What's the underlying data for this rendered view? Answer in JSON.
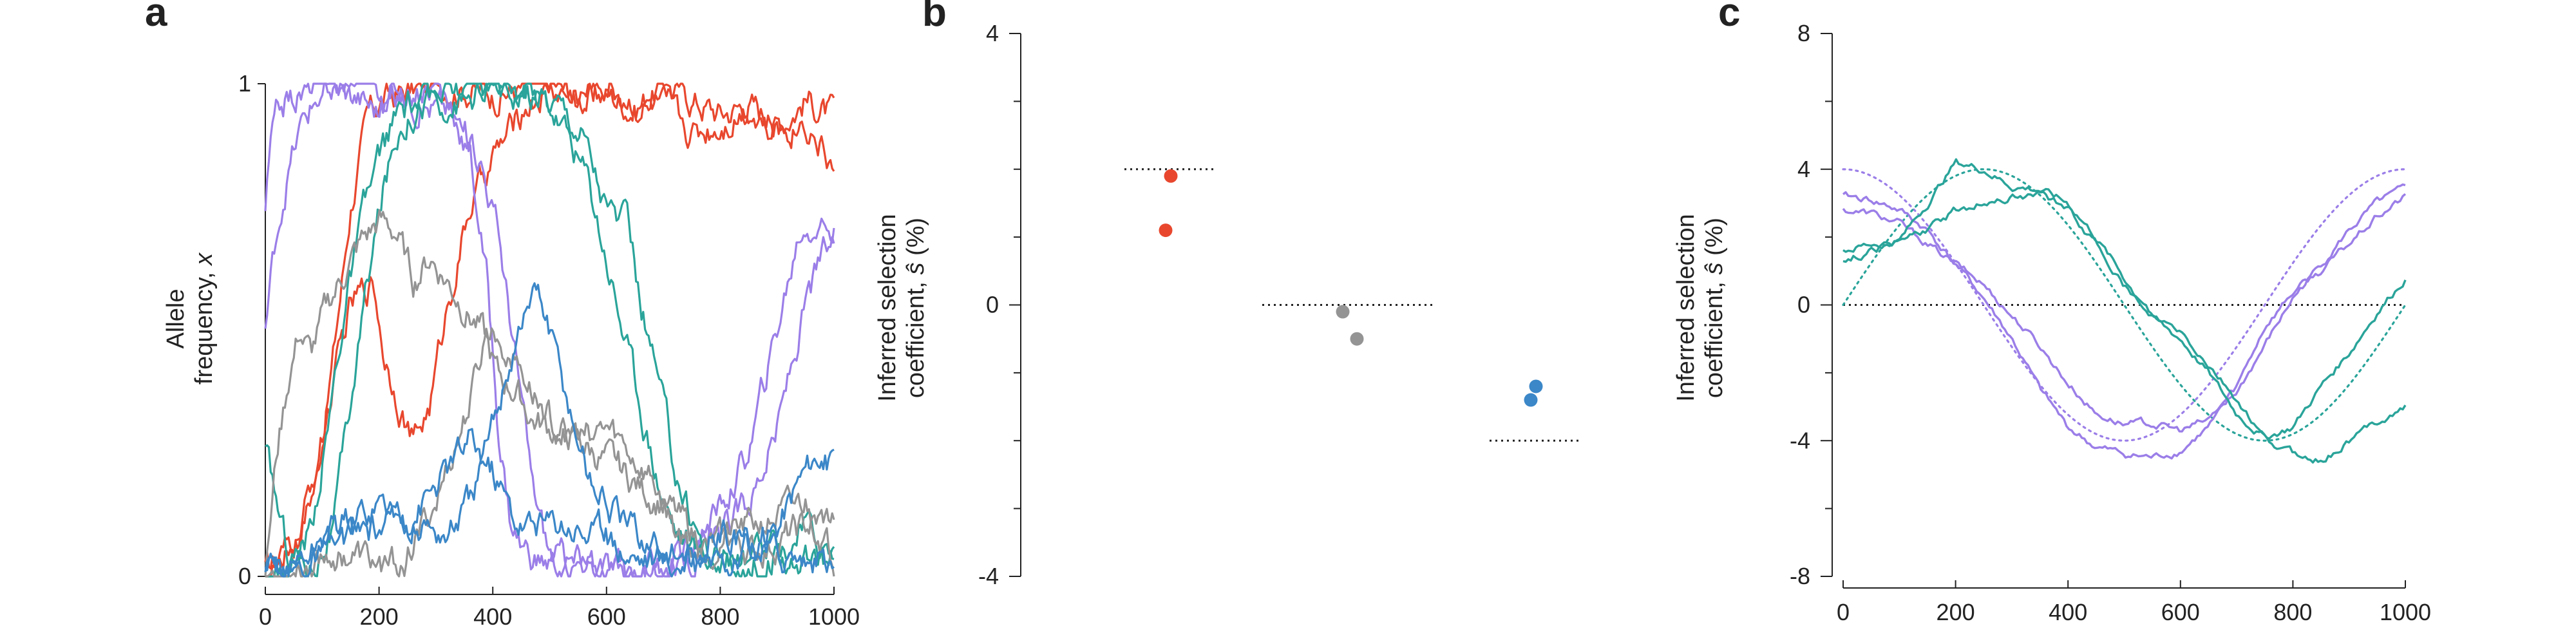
{
  "chart_data": [
    {
      "panel": "a",
      "type": "line",
      "ylabel_lines": [
        "Allele",
        "frequency, "
      ],
      "ylabel_var": "x",
      "xlim": [
        0,
        1000
      ],
      "ylim": [
        0,
        1
      ],
      "xticks": [
        0,
        200,
        400,
        600,
        800,
        1000
      ],
      "xtick_labels": [
        "0",
        "200",
        "400",
        "600",
        "800",
        "1000"
      ],
      "yticks": [
        0,
        1
      ],
      "ytick_labels": [
        "0",
        "1"
      ],
      "series": [
        {
          "color": "#e8472e",
          "x": [
            0,
            30,
            60,
            90,
            120,
            150,
            180,
            210,
            240,
            280,
            320,
            360,
            400,
            450,
            500,
            550,
            600,
            650,
            700,
            750,
            800,
            850,
            900,
            950,
            1000
          ],
          "y": [
            0.01,
            0.04,
            0.1,
            0.2,
            0.45,
            0.75,
            0.93,
            0.97,
            0.98,
            0.99,
            1.0,
            0.99,
            0.98,
            0.99,
            1.0,
            0.97,
            0.98,
            0.95,
            1.0,
            0.97,
            0.94,
            0.96,
            0.92,
            0.97,
            0.93
          ]
        },
        {
          "color": "#e8472e",
          "x": [
            0,
            30,
            60,
            100,
            150,
            190,
            210,
            230,
            260,
            290,
            320,
            360,
            400,
            430,
            460,
            500,
            550,
            600,
            650,
            700,
            750,
            800,
            850,
            900,
            950,
            1000
          ],
          "y": [
            0.0,
            0.03,
            0.08,
            0.28,
            0.55,
            0.6,
            0.45,
            0.38,
            0.27,
            0.35,
            0.55,
            0.75,
            0.85,
            0.9,
            0.96,
            0.99,
            0.97,
            1.0,
            0.96,
            0.95,
            0.9,
            0.92,
            0.96,
            0.9,
            0.93,
            0.83
          ]
        },
        {
          "color": "#9b7ee8",
          "x": [
            0,
            10,
            25,
            40,
            60,
            80,
            100,
            130,
            160,
            200,
            240,
            280,
            320,
            350,
            380,
            410,
            440,
            470,
            500,
            550,
            600,
            650,
            700,
            750,
            800,
            850,
            900,
            950,
            980,
            1000
          ],
          "y": [
            0.75,
            0.88,
            0.95,
            0.97,
            0.98,
            0.99,
            1.0,
            0.99,
            0.98,
            0.95,
            0.98,
            0.96,
            0.95,
            0.9,
            0.85,
            0.7,
            0.45,
            0.18,
            0.05,
            0.02,
            0.01,
            0.01,
            0.02,
            0.04,
            0.08,
            0.15,
            0.3,
            0.55,
            0.65,
            0.68
          ]
        },
        {
          "color": "#9b7ee8",
          "x": [
            0,
            20,
            40,
            60,
            80,
            100,
            140,
            180,
            220,
            260,
            300,
            330,
            360,
            390,
            410,
            430,
            450,
            480,
            520,
            560,
            600,
            650,
            700,
            750,
            790,
            820,
            850,
            880,
            910,
            940,
            970,
            1000
          ],
          "y": [
            0.5,
            0.7,
            0.82,
            0.9,
            0.95,
            0.98,
            0.99,
            1.0,
            0.98,
            0.99,
            1.0,
            0.95,
            0.85,
            0.6,
            0.3,
            0.12,
            0.06,
            0.03,
            0.02,
            0.02,
            0.01,
            0.01,
            0.02,
            0.05,
            0.12,
            0.18,
            0.25,
            0.4,
            0.55,
            0.7,
            0.72,
            0.7
          ]
        },
        {
          "color": "#2aa49a",
          "x": [
            0,
            40,
            80,
            120,
            150,
            180,
            210,
            240,
            280,
            320,
            360,
            400,
            440,
            480,
            520,
            560,
            600,
            640,
            660,
            690,
            720,
            750,
            780,
            820,
            860,
            900,
            950,
            1000
          ],
          "y": [
            0.25,
            0.05,
            0.02,
            0.1,
            0.35,
            0.6,
            0.8,
            0.93,
            0.97,
            0.98,
            0.99,
            1.0,
            0.99,
            0.98,
            0.96,
            0.9,
            0.75,
            0.7,
            0.55,
            0.4,
            0.22,
            0.12,
            0.05,
            0.03,
            0.04,
            0.05,
            0.03,
            0.03
          ]
        },
        {
          "color": "#2aa49a",
          "x": [
            0,
            40,
            80,
            110,
            140,
            170,
            200,
            230,
            260,
            300,
            340,
            380,
            420,
            460,
            500,
            540,
            570,
            600,
            630,
            660,
            690,
            720,
            760,
            800,
            850,
            900,
            950,
            1000
          ],
          "y": [
            0.0,
            0.01,
            0.1,
            0.3,
            0.55,
            0.72,
            0.85,
            0.93,
            0.96,
            0.97,
            0.96,
            0.98,
            0.99,
            0.98,
            0.96,
            0.88,
            0.8,
            0.65,
            0.5,
            0.35,
            0.2,
            0.1,
            0.05,
            0.03,
            0.02,
            0.05,
            0.1,
            0.04
          ]
        },
        {
          "color": "#949494",
          "x": [
            0,
            20,
            40,
            60,
            80,
            110,
            140,
            170,
            200,
            230,
            260,
            290,
            320,
            350,
            380,
            410,
            440,
            470,
            500,
            540,
            580,
            620,
            660,
            700,
            740,
            780,
            820,
            860,
            900,
            950,
            1000
          ],
          "y": [
            0.0,
            0.25,
            0.4,
            0.5,
            0.45,
            0.55,
            0.62,
            0.68,
            0.72,
            0.7,
            0.6,
            0.65,
            0.6,
            0.55,
            0.5,
            0.4,
            0.38,
            0.32,
            0.3,
            0.28,
            0.25,
            0.22,
            0.18,
            0.15,
            0.1,
            0.06,
            0.08,
            0.05,
            0.07,
            0.1,
            0.12
          ]
        },
        {
          "color": "#949494",
          "x": [
            0,
            40,
            80,
            120,
            160,
            200,
            240,
            270,
            300,
            330,
            360,
            390,
            420,
            450,
            480,
            520,
            560,
            600,
            640,
            680,
            720,
            760,
            800,
            850,
            900,
            950,
            1000
          ],
          "y": [
            0.0,
            0.01,
            0.03,
            0.05,
            0.04,
            0.02,
            0.02,
            0.08,
            0.15,
            0.25,
            0.35,
            0.5,
            0.48,
            0.42,
            0.35,
            0.3,
            0.28,
            0.3,
            0.25,
            0.2,
            0.1,
            0.05,
            0.08,
            0.1,
            0.12,
            0.15,
            0.04
          ]
        },
        {
          "color": "#3b87c8",
          "x": [
            0,
            40,
            80,
            120,
            160,
            200,
            240,
            280,
            320,
            360,
            390,
            420,
            450,
            480,
            510,
            540,
            570,
            600,
            630,
            660,
            700,
            740,
            780,
            820,
            860,
            900,
            940,
            970,
            1000
          ],
          "y": [
            0.0,
            0.02,
            0.05,
            0.1,
            0.12,
            0.15,
            0.12,
            0.1,
            0.08,
            0.15,
            0.25,
            0.4,
            0.52,
            0.58,
            0.45,
            0.32,
            0.2,
            0.15,
            0.1,
            0.08,
            0.05,
            0.03,
            0.02,
            0.03,
            0.06,
            0.1,
            0.2,
            0.25,
            0.22
          ]
        },
        {
          "color": "#3b87c8",
          "x": [
            0,
            40,
            80,
            120,
            160,
            200,
            240,
            280,
            320,
            360,
            400,
            440,
            480,
            520,
            560,
            600,
            640,
            680,
            720,
            760,
            800,
            850,
            900,
            950,
            1000
          ],
          "y": [
            0.0,
            0.01,
            0.03,
            0.06,
            0.08,
            0.1,
            0.12,
            0.16,
            0.22,
            0.28,
            0.22,
            0.12,
            0.1,
            0.12,
            0.1,
            0.08,
            0.05,
            0.04,
            0.03,
            0.05,
            0.08,
            0.06,
            0.05,
            0.04,
            0.02
          ]
        }
      ]
    },
    {
      "panel": "b",
      "type": "scatter",
      "ylabel_lines": [
        "Inferred selection",
        "coefficient, "
      ],
      "ylabel_var": "ŝ",
      "ylabel_unit": " (%)",
      "ylim": [
        -4,
        4
      ],
      "yticks": [
        -4,
        0,
        4
      ],
      "ytick_labels": [
        "-4",
        "0",
        "4"
      ],
      "groups": [
        {
          "color": "#e8472e",
          "true_value": 2.0,
          "points": [
            1.9,
            1.1
          ]
        },
        {
          "color": "#949494",
          "true_value": 0.0,
          "points": [
            -0.1,
            -0.5
          ]
        },
        {
          "color": "#3b87c8",
          "true_value": -2.0,
          "points": [
            -1.2,
            -1.4
          ]
        }
      ]
    },
    {
      "panel": "c",
      "type": "line",
      "ylabel_lines": [
        "Inferred selection",
        "coefficient, "
      ],
      "ylabel_var": "ŝ",
      "ylabel_unit": " (%)",
      "xlim": [
        0,
        1000
      ],
      "ylim": [
        -8,
        8
      ],
      "xticks": [
        0,
        200,
        400,
        600,
        800,
        1000
      ],
      "xtick_labels": [
        "0",
        "200",
        "400",
        "600",
        "800",
        "1000"
      ],
      "yticks": [
        -8,
        -4,
        0,
        4,
        8
      ],
      "ytick_labels": [
        "-8",
        "-4",
        "0",
        "4",
        "8"
      ],
      "zero_line": 0,
      "true_curves": [
        {
          "color": "#9b7ee8",
          "func": "cos",
          "amplitude": 4,
          "period": 1000,
          "phase": 0
        },
        {
          "color": "#2aa49a",
          "func": "sin",
          "amplitude": 4,
          "period": 1000,
          "phase": 0
        }
      ],
      "series": [
        {
          "color": "#9b7ee8",
          "x": [
            0,
            50,
            100,
            150,
            200,
            250,
            300,
            350,
            400,
            450,
            500,
            550,
            600,
            650,
            700,
            750,
            800,
            850,
            900,
            950,
            1000
          ],
          "y": [
            3.2,
            3.1,
            2.8,
            2.2,
            1.2,
            0.2,
            -1.0,
            -2.5,
            -3.6,
            -4.2,
            -4.4,
            -4.5,
            -4.3,
            -3.6,
            -2.6,
            -1.2,
            0.2,
            1.2,
            2.2,
            3.0,
            3.4
          ]
        },
        {
          "color": "#9b7ee8",
          "x": [
            0,
            50,
            100,
            150,
            200,
            250,
            300,
            350,
            400,
            450,
            500,
            550,
            600,
            650,
            700,
            750,
            800,
            850,
            900,
            950,
            1000
          ],
          "y": [
            2.8,
            2.7,
            2.4,
            1.8,
            1.2,
            0.6,
            -0.3,
            -1.2,
            -2.3,
            -3.2,
            -3.5,
            -3.5,
            -3.7,
            -3.4,
            -2.4,
            -0.6,
            0.4,
            1.0,
            1.8,
            2.6,
            3.2
          ]
        },
        {
          "color": "#2aa49a",
          "x": [
            0,
            50,
            100,
            150,
            200,
            250,
            300,
            350,
            400,
            450,
            500,
            550,
            600,
            650,
            700,
            750,
            800,
            850,
            900,
            950,
            1000
          ],
          "y": [
            1.6,
            1.8,
            1.9,
            3.0,
            4.2,
            4.0,
            3.5,
            3.4,
            3.0,
            2.0,
            0.8,
            -0.4,
            -1.0,
            -2.0,
            -3.2,
            -3.9,
            -3.6,
            -2.4,
            -1.4,
            -0.2,
            0.8
          ]
        },
        {
          "color": "#2aa49a",
          "x": [
            0,
            50,
            100,
            150,
            200,
            250,
            300,
            350,
            400,
            450,
            500,
            550,
            600,
            650,
            700,
            750,
            800,
            850,
            900,
            950,
            1000
          ],
          "y": [
            1.3,
            1.6,
            1.9,
            2.2,
            2.8,
            3.0,
            3.2,
            3.3,
            2.8,
            1.8,
            0.6,
            -0.4,
            -0.8,
            -1.8,
            -2.8,
            -4.0,
            -4.4,
            -4.6,
            -4.0,
            -3.4,
            -3.0
          ]
        }
      ]
    }
  ]
}
